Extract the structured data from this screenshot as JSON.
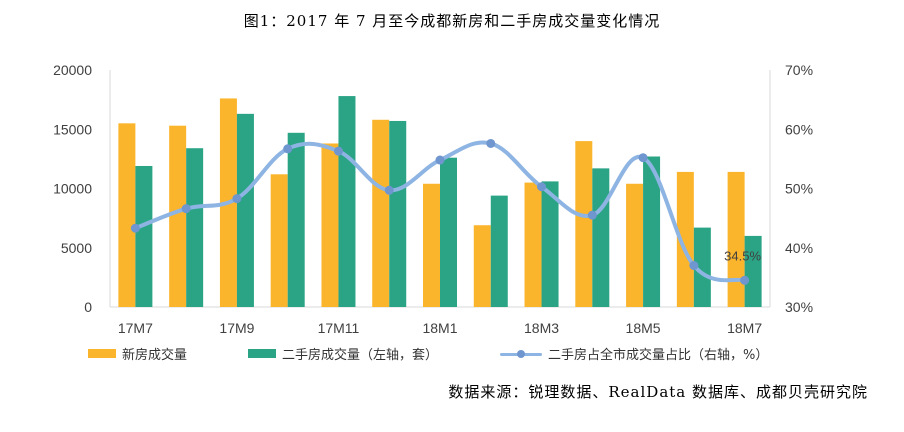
{
  "title": "图1：2017 年 7 月至今成都新房和二手房成交量变化情况",
  "source": "数据来源：锐理数据、RealData 数据库、成都贝壳研究院",
  "colors": {
    "new": "#FBB52C",
    "second": "#2BA486",
    "ratio": "#8DB4E2",
    "ratio_marker": "#6F96CF"
  },
  "legend": {
    "new": "新房成交量",
    "second": "二手房成交量（左轴，套）",
    "ratio": "二手房占全市成交量占比（右轴，%）"
  },
  "chart_data": {
    "type": "bar",
    "categories": [
      "17M7",
      "17M8",
      "17M9",
      "17M10",
      "17M11",
      "17M12",
      "18M1",
      "18M2",
      "18M3",
      "18M4",
      "18M5",
      "18M6",
      "18M7"
    ],
    "x_tick_labels": [
      "17M7",
      "",
      "17M9",
      "",
      "17M11",
      "",
      "18M1",
      "",
      "18M3",
      "",
      "18M5",
      "",
      "18M7"
    ],
    "series": [
      {
        "name": "新房成交量",
        "type": "bar",
        "axis": "left",
        "values": [
          15500,
          15300,
          17600,
          11200,
          13800,
          15800,
          10400,
          6900,
          10500,
          14000,
          10400,
          11400,
          11400
        ]
      },
      {
        "name": "二手房成交量（左轴，套）",
        "type": "bar",
        "axis": "left",
        "values": [
          11900,
          13400,
          16300,
          14700,
          17800,
          15700,
          12600,
          9400,
          10600,
          11700,
          12700,
          6700,
          6000
        ]
      },
      {
        "name": "二手房占全市成交量占比（右轴，%）",
        "type": "line",
        "axis": "right",
        "values": [
          43.3,
          46.6,
          48.3,
          56.7,
          56.3,
          49.7,
          54.8,
          57.6,
          50.3,
          45.5,
          55.2,
          37.0,
          34.5
        ]
      }
    ],
    "y_left": {
      "min": 0,
      "max": 20000,
      "ticks": [
        "0",
        "5000",
        "10000",
        "15000",
        "20000"
      ]
    },
    "y_right": {
      "min": 30,
      "max": 70,
      "ticks": [
        "30%",
        "40%",
        "50%",
        "60%",
        "70%"
      ]
    },
    "annotation": {
      "index": 12,
      "series": 2,
      "text": "34.5%"
    },
    "grid": false,
    "legend_position": "bottom"
  }
}
